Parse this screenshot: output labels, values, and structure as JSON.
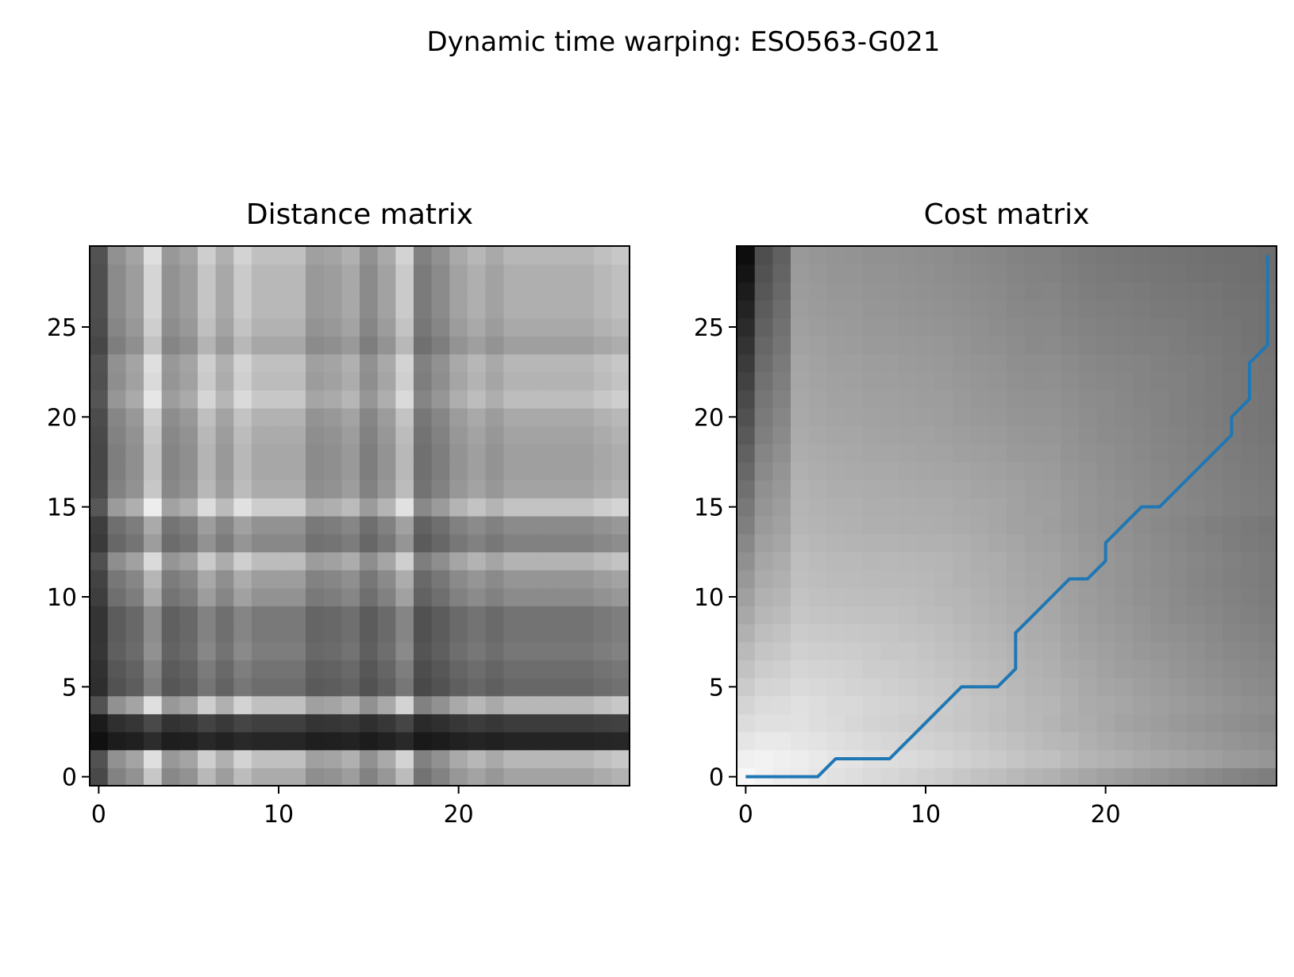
{
  "figure": {
    "suptitle": "Dynamic time warping: ESO563-G021"
  },
  "chart_data": [
    {
      "type": "heatmap",
      "title": "Distance matrix",
      "xlabel": "",
      "ylabel": "",
      "x_ticks": [
        0,
        10,
        20
      ],
      "y_ticks": [
        0,
        5,
        10,
        15,
        20,
        25
      ],
      "xlim": [
        -0.5,
        29.5
      ],
      "ylim": [
        -0.5,
        29.5
      ],
      "colormap": "gray",
      "origin": "lower",
      "col_profile": [
        0.35,
        0.62,
        0.7,
        0.95,
        0.65,
        0.7,
        0.88,
        0.75,
        0.9,
        0.82,
        0.82,
        0.82,
        0.68,
        0.7,
        0.75,
        0.62,
        0.72,
        0.9,
        0.55,
        0.62,
        0.72,
        0.78,
        0.72,
        0.78,
        0.78,
        0.78,
        0.78,
        0.78,
        0.82,
        0.85
      ],
      "row_profile": [
        0.82,
        0.92,
        0.18,
        0.3,
        0.92,
        0.52,
        0.55,
        0.6,
        0.58,
        0.58,
        0.7,
        0.75,
        0.9,
        0.65,
        0.7,
        0.98,
        0.82,
        0.8,
        0.8,
        0.82,
        0.85,
        0.95,
        0.9,
        0.92,
        0.8,
        0.85,
        0.88,
        0.88,
        0.88,
        0.92
      ]
    },
    {
      "type": "heatmap",
      "title": "Cost matrix",
      "xlabel": "",
      "ylabel": "",
      "x_ticks": [
        0,
        10,
        20
      ],
      "y_ticks": [
        0,
        5,
        10,
        15,
        20,
        25
      ],
      "xlim": [
        -0.5,
        29.5
      ],
      "ylim": [
        -0.5,
        29.5
      ],
      "colormap": "gray",
      "origin": "lower",
      "path_color": "#1f77b4",
      "warping_path": [
        [
          0,
          0
        ],
        [
          1,
          0
        ],
        [
          2,
          0
        ],
        [
          3,
          0
        ],
        [
          4,
          0
        ],
        [
          5,
          1
        ],
        [
          6,
          1
        ],
        [
          7,
          1
        ],
        [
          8,
          1
        ],
        [
          9,
          2
        ],
        [
          10,
          3
        ],
        [
          11,
          4
        ],
        [
          12,
          5
        ],
        [
          13,
          5
        ],
        [
          14,
          5
        ],
        [
          15,
          6
        ],
        [
          15,
          7
        ],
        [
          15,
          8
        ],
        [
          16,
          9
        ],
        [
          17,
          10
        ],
        [
          18,
          11
        ],
        [
          19,
          11
        ],
        [
          20,
          12
        ],
        [
          20,
          13
        ],
        [
          21,
          14
        ],
        [
          22,
          15
        ],
        [
          23,
          15
        ],
        [
          24,
          16
        ],
        [
          25,
          17
        ],
        [
          26,
          18
        ],
        [
          27,
          19
        ],
        [
          27,
          20
        ],
        [
          28,
          21
        ],
        [
          28,
          22
        ],
        [
          28,
          23
        ],
        [
          29,
          24
        ],
        [
          29,
          25
        ],
        [
          29,
          26
        ],
        [
          29,
          27
        ],
        [
          29,
          28
        ],
        [
          29,
          29
        ]
      ]
    }
  ]
}
